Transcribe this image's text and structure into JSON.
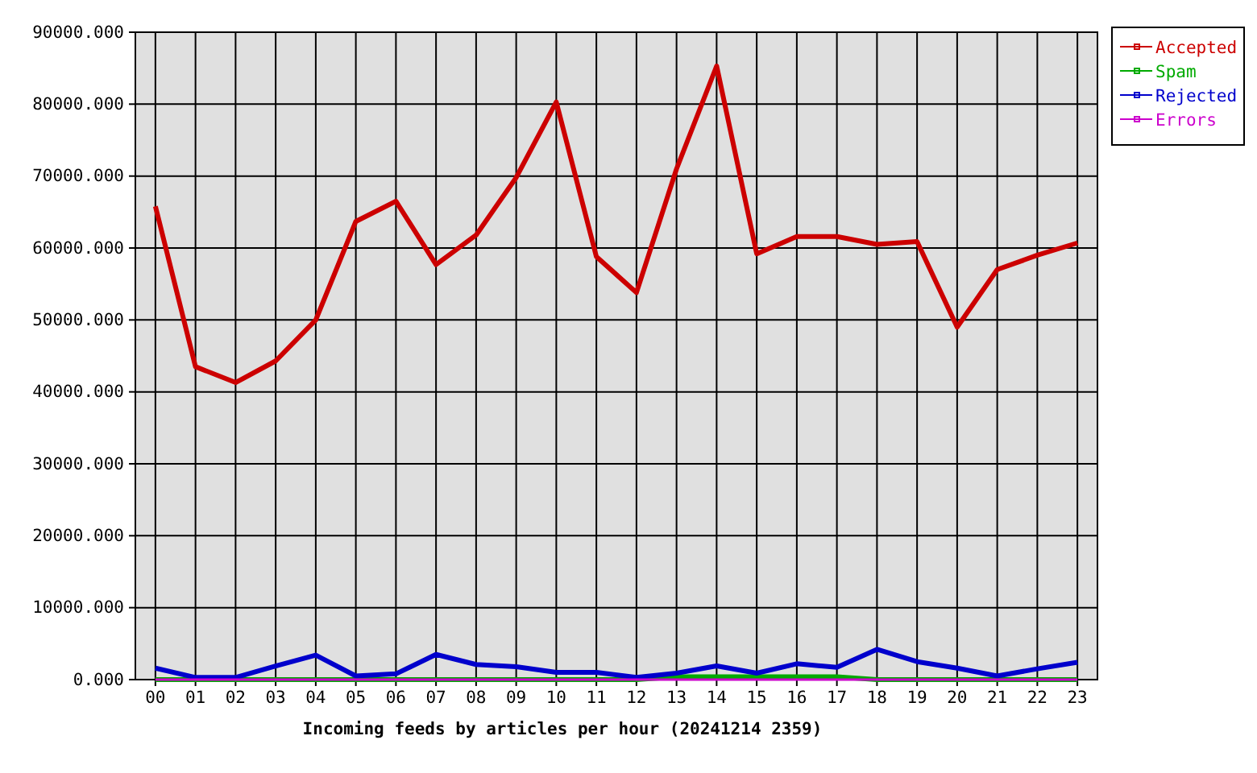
{
  "chart_data": {
    "type": "line",
    "xlabel": "Incoming feeds by articles per hour (20241214 2359)",
    "categories": [
      "00",
      "01",
      "02",
      "03",
      "04",
      "05",
      "06",
      "07",
      "08",
      "09",
      "10",
      "11",
      "12",
      "13",
      "14",
      "15",
      "16",
      "17",
      "18",
      "19",
      "20",
      "21",
      "22",
      "23"
    ],
    "series": [
      {
        "name": "Accepted",
        "color": "#cc0000",
        "values": [
          65800,
          43500,
          41300,
          44300,
          50000,
          63700,
          66500,
          57700,
          61800,
          69800,
          80300,
          58800,
          53800,
          71000,
          85300,
          59200,
          61600,
          61600,
          60500,
          60900,
          49000,
          57000,
          59000,
          60700
        ]
      },
      {
        "name": "Spam",
        "color": "#00aa00",
        "values": [
          0,
          0,
          0,
          0,
          0,
          0,
          0,
          0,
          0,
          0,
          0,
          0,
          0,
          400,
          400,
          400,
          400,
          400,
          0,
          0,
          0,
          0,
          0,
          0
        ]
      },
      {
        "name": "Rejected",
        "color": "#0000cc",
        "values": [
          1600,
          300,
          300,
          1900,
          3400,
          500,
          800,
          3500,
          2100,
          1800,
          1000,
          1000,
          300,
          900,
          1900,
          900,
          2200,
          1700,
          4200,
          2500,
          1600,
          500,
          1500,
          2400
        ]
      },
      {
        "name": "Errors",
        "color": "#cc00cc",
        "values": [
          0,
          0,
          0,
          0,
          0,
          0,
          0,
          0,
          0,
          0,
          0,
          0,
          0,
          0,
          0,
          0,
          0,
          0,
          0,
          0,
          0,
          0,
          0,
          0
        ]
      }
    ],
    "ylim": [
      0,
      90000
    ],
    "yticks": [
      {
        "value": 0,
        "label": "0.000"
      },
      {
        "value": 10000,
        "label": "10000.000"
      },
      {
        "value": 20000,
        "label": "20000.000"
      },
      {
        "value": 30000,
        "label": "30000.000"
      },
      {
        "value": 40000,
        "label": "40000.000"
      },
      {
        "value": 50000,
        "label": "50000.000"
      },
      {
        "value": 60000,
        "label": "60000.000"
      },
      {
        "value": 70000,
        "label": "70000.000"
      },
      {
        "value": 80000,
        "label": "80000.000"
      },
      {
        "value": 90000,
        "label": "90000.000"
      }
    ],
    "grid": true,
    "legend": "top right"
  }
}
